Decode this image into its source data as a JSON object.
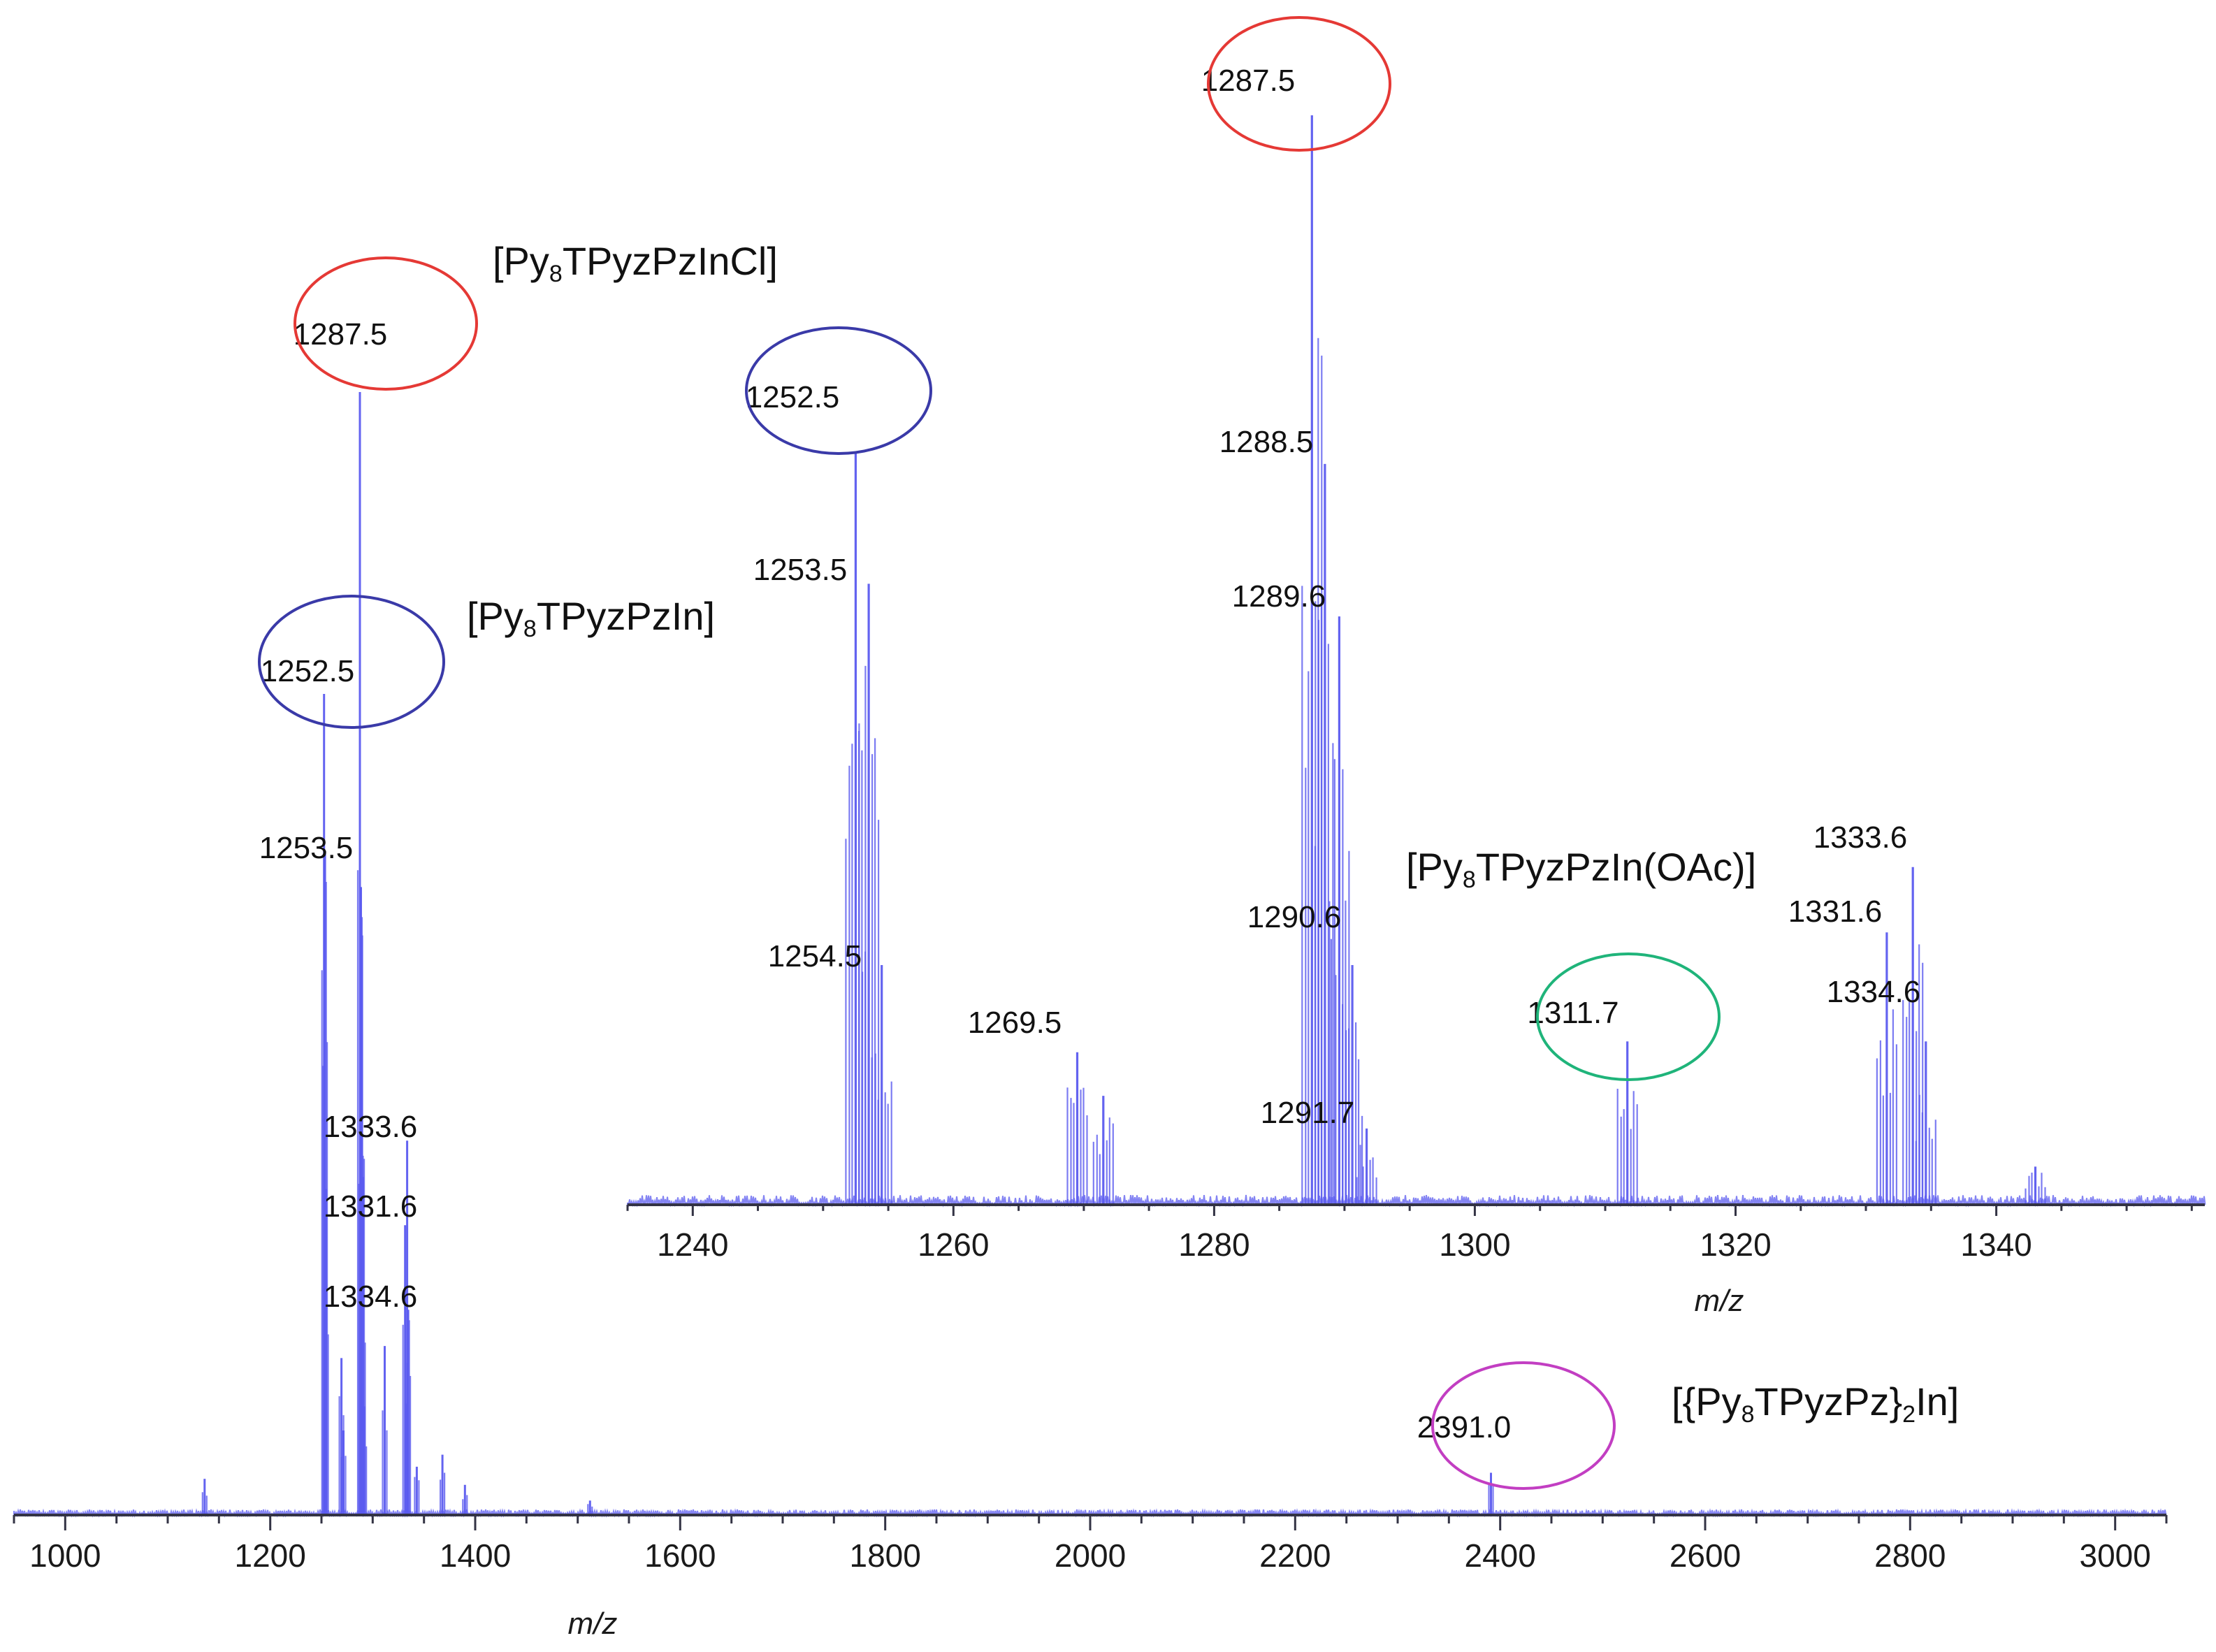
{
  "chart_data": [
    {
      "id": "main",
      "type": "line",
      "xlabel": "m/z",
      "xlim": [
        950,
        3050
      ],
      "ylim": [
        0,
        100
      ],
      "x_ticks": [
        "1000",
        "1200",
        "1400",
        "1600",
        "1800",
        "2000",
        "2200",
        "2400",
        "2600",
        "2800",
        "3000"
      ],
      "y_ticks": [],
      "series": [
        {
          "color": "#5b5bef",
          "peaks": [
            {
              "x": 1136,
              "y": 3
            },
            {
              "x": 1252.5,
              "y": 68
            },
            {
              "x": 1253.5,
              "y": 55
            },
            {
              "x": 1254.5,
              "y": 27
            },
            {
              "x": 1269.5,
              "y": 13
            },
            {
              "x": 1271.5,
              "y": 7
            },
            {
              "x": 1287.5,
              "y": 93
            },
            {
              "x": 1288.5,
              "y": 52
            },
            {
              "x": 1289.6,
              "y": 48
            },
            {
              "x": 1290.6,
              "y": 28
            },
            {
              "x": 1291.7,
              "y": 9
            },
            {
              "x": 1311.7,
              "y": 14
            },
            {
              "x": 1331.6,
              "y": 24
            },
            {
              "x": 1333.6,
              "y": 31
            },
            {
              "x": 1334.6,
              "y": 17
            },
            {
              "x": 1343,
              "y": 4
            },
            {
              "x": 1368,
              "y": 5
            },
            {
              "x": 1390,
              "y": 2.5
            },
            {
              "x": 1512,
              "y": 1.2
            },
            {
              "x": 2391.0,
              "y": 3.5
            }
          ]
        }
      ],
      "peak_labels": [
        "1287.5",
        "1252.5",
        "1253.5",
        "1333.6",
        "1331.6",
        "1334.6",
        "2391.0"
      ],
      "species_labels": [
        {
          "text": "[Py8TPyzPzInCl]",
          "pre": "[Py",
          "sub": "8",
          "post": "TPyzPzInCl]"
        },
        {
          "text": "[Py8TPyzPzIn]",
          "pre": "[Py",
          "sub": "8",
          "post": "TPyzPzIn]"
        },
        {
          "text": "[{Py8TPyzPz}2In]",
          "pre": "[{Py",
          "sub": "8",
          "mid": "TPyzPz}",
          "sub2": "2",
          "post": "In]"
        }
      ],
      "highlight_circles": [
        {
          "label": "1287.5",
          "color": "#e53935"
        },
        {
          "label": "1252.5",
          "color": "#3a3aa8"
        },
        {
          "label": "2391.0",
          "color": "#c23ec2"
        }
      ]
    },
    {
      "id": "inset",
      "type": "line",
      "xlabel": "m/z",
      "xlim": [
        1235,
        1356
      ],
      "ylim": [
        0,
        100
      ],
      "x_ticks": [
        "1240",
        "1260",
        "1280",
        "1300",
        "1320",
        "1340"
      ],
      "y_ticks": [],
      "series": [
        {
          "color": "#5b5bef",
          "peaks": [
            {
              "x": 1252.5,
              "y": 69
            },
            {
              "x": 1253.5,
              "y": 57
            },
            {
              "x": 1254.5,
              "y": 22
            },
            {
              "x": 1269.5,
              "y": 14
            },
            {
              "x": 1271.5,
              "y": 10
            },
            {
              "x": 1287.5,
              "y": 100
            },
            {
              "x": 1288.5,
              "y": 68
            },
            {
              "x": 1289.6,
              "y": 54
            },
            {
              "x": 1290.6,
              "y": 22
            },
            {
              "x": 1291.7,
              "y": 7
            },
            {
              "x": 1311.7,
              "y": 15
            },
            {
              "x": 1331.6,
              "y": 25
            },
            {
              "x": 1333.6,
              "y": 31
            },
            {
              "x": 1334.6,
              "y": 15
            },
            {
              "x": 1343,
              "y": 3.5
            }
          ]
        }
      ],
      "peak_labels": [
        "1287.5",
        "1288.5",
        "1252.5",
        "1253.5",
        "1289.6",
        "1290.6",
        "1254.5",
        "1269.5",
        "1291.7",
        "1311.7",
        "1333.6",
        "1331.6",
        "1334.6"
      ],
      "species_labels": [
        {
          "text": "[Py8TPyzPzIn(OAc)]",
          "pre": "[Py",
          "sub": "8",
          "post": "TPyzPzIn(OAc)]"
        }
      ],
      "highlight_circles": [
        {
          "label": "1287.5",
          "color": "#e53935"
        },
        {
          "label": "1252.5",
          "color": "#3a3aa8"
        },
        {
          "label": "1311.7",
          "color": "#1fb47a"
        }
      ]
    }
  ]
}
